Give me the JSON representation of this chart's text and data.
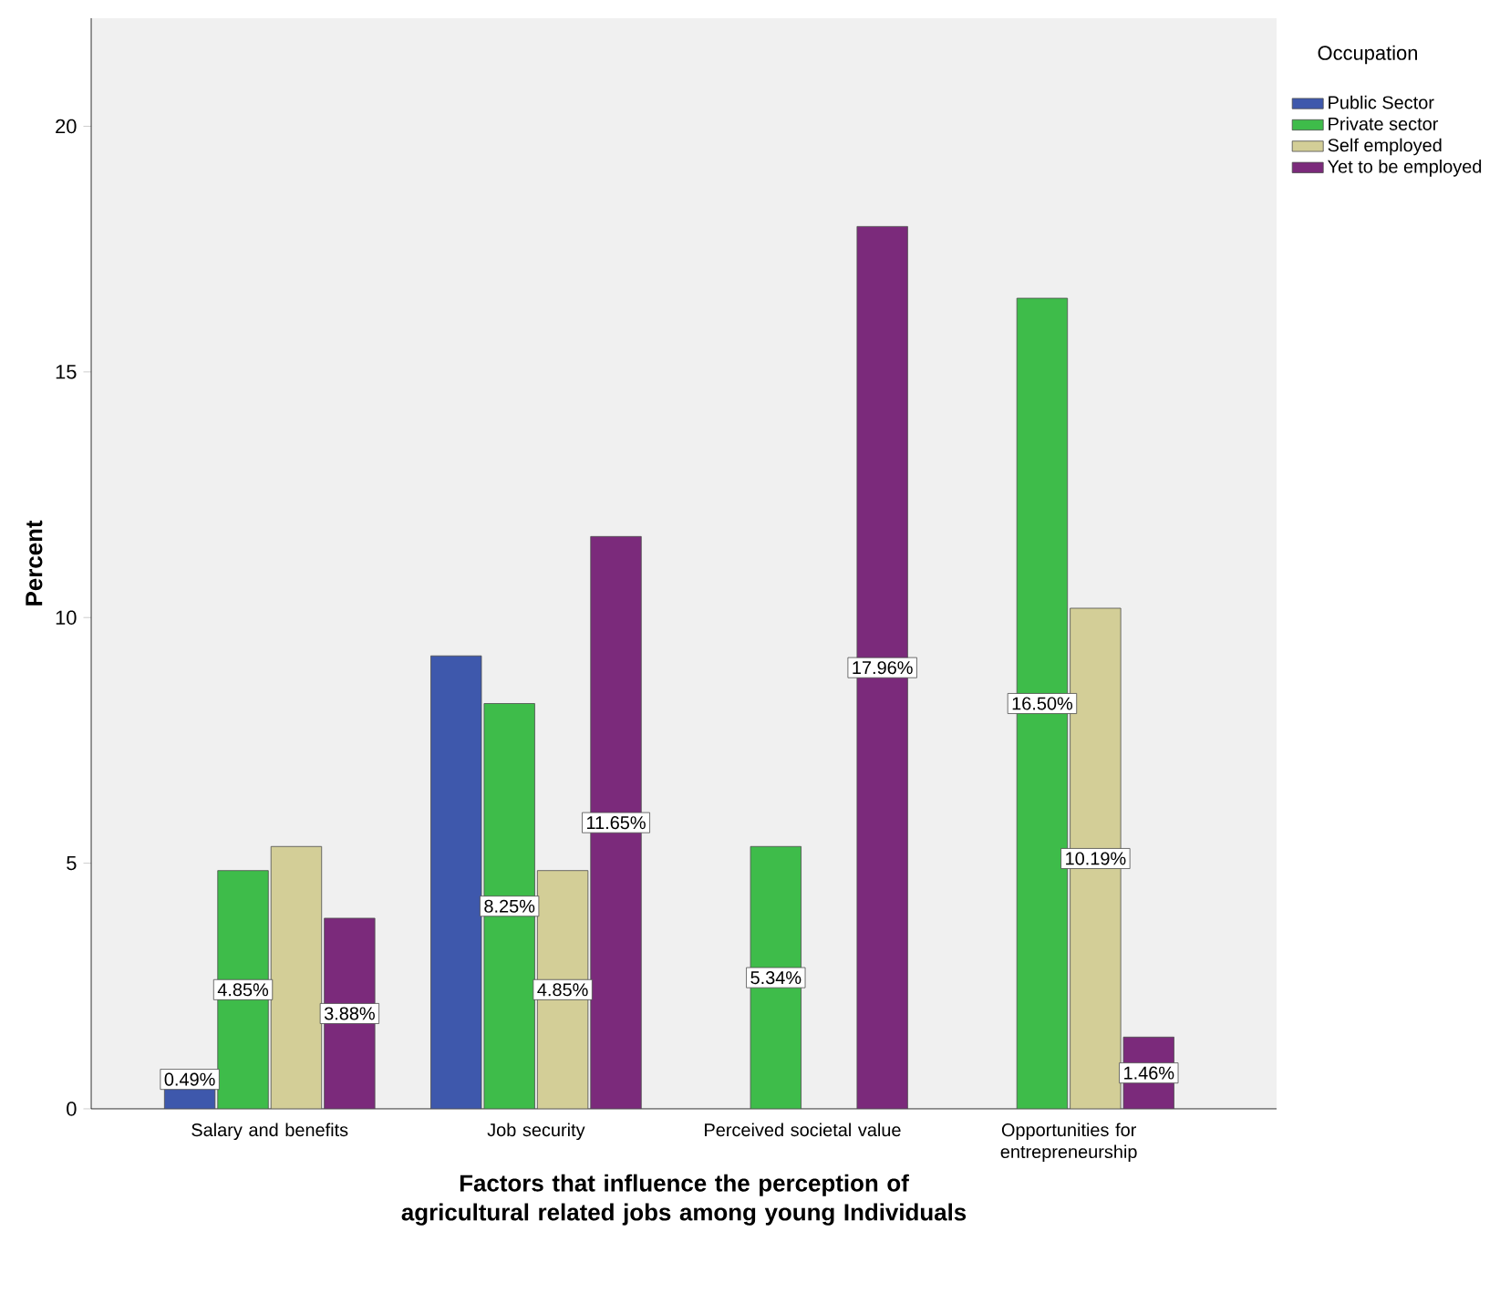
{
  "chart_data": {
    "type": "bar",
    "xlabel": "Factors that influence the perception of agricultural related jobs among young Individuals",
    "ylabel": "Percent",
    "legend_title": "Occupation",
    "categories": [
      "Salary and benefits",
      "Job security",
      "Perceived societal value",
      "Opportunities for entrepreneurship"
    ],
    "series": [
      {
        "name": "Public Sector",
        "color": "#3e58ac",
        "values": [
          0.49,
          9.22,
          null,
          null
        ],
        "value_labels": [
          "0.49%",
          null,
          null,
          null
        ]
      },
      {
        "name": "Private sector",
        "color": "#3ebc4a",
        "values": [
          4.85,
          8.25,
          5.34,
          16.5
        ],
        "value_labels": [
          "4.85%",
          "8.25%",
          "5.34%",
          "16.50%"
        ]
      },
      {
        "name": "Self employed",
        "color": "#d3ce97",
        "values": [
          5.34,
          4.85,
          null,
          10.19
        ],
        "value_labels": [
          null,
          "4.85%",
          null,
          "10.19%"
        ]
      },
      {
        "name": "Yet to be employed",
        "color": "#7b2a7b",
        "values": [
          3.88,
          11.65,
          17.96,
          1.46
        ],
        "value_labels": [
          "3.88%",
          "11.65%",
          "17.96%",
          "1.46%"
        ]
      }
    ],
    "ylim": [
      0,
      22.2
    ],
    "yticks": [
      0,
      5,
      10,
      15,
      20
    ],
    "legend": "right"
  }
}
